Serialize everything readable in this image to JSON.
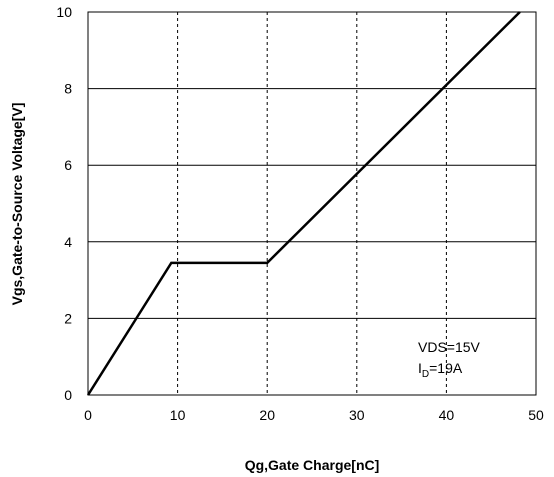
{
  "chart_data": {
    "type": "line",
    "xlabel": "Qg,Gate Charge[nC]",
    "ylabel": "Vgs,Gate-to-Source Voltage[V]",
    "xlim": [
      0,
      50
    ],
    "ylim": [
      0,
      10
    ],
    "x_ticks": [
      "0",
      "10",
      "20",
      "30",
      "40",
      "50"
    ],
    "y_ticks": [
      "0",
      "2",
      "4",
      "6",
      "8",
      "10"
    ],
    "x_grid": "dashed",
    "y_grid": "solid",
    "series": [
      {
        "x": [
          0,
          9.3,
          20,
          48.2
        ],
        "y": [
          0,
          3.45,
          3.45,
          10
        ]
      }
    ],
    "annotation": {
      "line1": "VDS=15V",
      "line2_prefix": "I",
      "line2_sub": "D",
      "line2_suffix": "=19A"
    }
  }
}
